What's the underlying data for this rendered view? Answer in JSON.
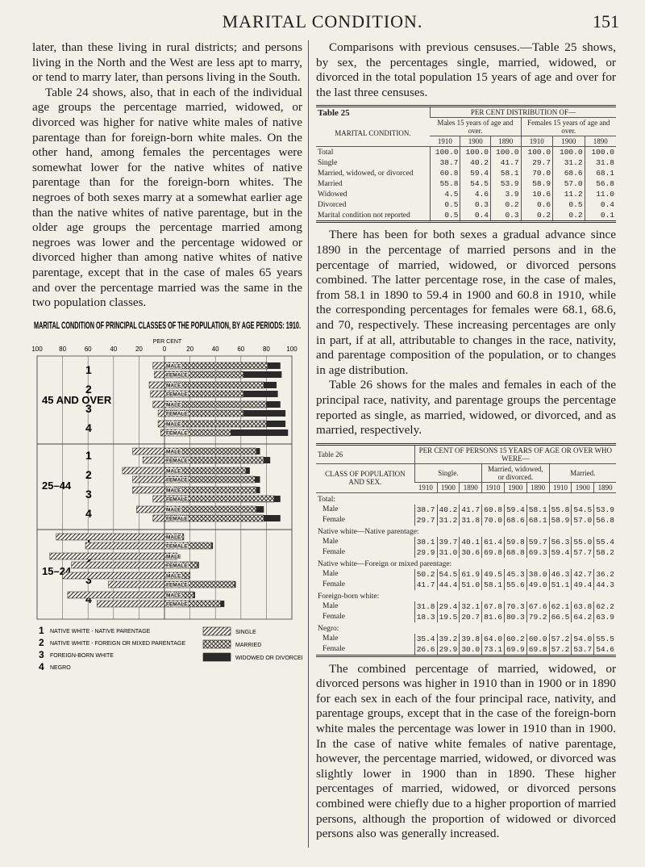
{
  "header": {
    "title": "MARITAL CONDITION.",
    "page": "151"
  },
  "left_text": [
    "later, than these living in rural districts; and persons living in the North and the West are less apt to marry, or tend to marry later, than persons living in the South.",
    "Table 24 shows, also, that in each of the individual age groups the percentage married, widowed, or divorced was higher for native white males of native parentage than for foreign-born white males. On the other hand, among females the percentages were somewhat lower for the native whites of native parentage than for the foreign-born whites. The negroes of both sexes marry at a somewhat earlier age than the native whites of native parentage, but in the older age groups the percentage married among negroes was lower and the percentage widowed or divorced higher than among native whites of native parentage, except that in the case of males 65 years and over the percentage married was the same in the two population classes."
  ],
  "figure": {
    "type": "bar",
    "title": "MARITAL CONDITION OF PRINCIPAL CLASSES OF THE POPULATION, BY AGE PERIODS: 1910.",
    "unit_label": "PER CENT",
    "xlim": [
      -100,
      100
    ],
    "xticks": [
      {
        "value": -100,
        "label": "100"
      },
      {
        "value": -80,
        "label": "80"
      },
      {
        "value": -60,
        "label": "60"
      },
      {
        "value": -40,
        "label": "40"
      },
      {
        "value": -20,
        "label": "20"
      },
      0,
      20,
      40,
      60,
      80,
      100
    ],
    "grid": true,
    "age_groups": [
      "45 AND OVER",
      "25–44",
      "15–24"
    ],
    "class_numbers": [
      "1",
      "2",
      "3",
      "4"
    ],
    "categories": [
      "MALE",
      "FEMALE",
      "MALE",
      "FEMALE",
      "MALE",
      "FEMALE",
      "MALE",
      "FEMALE",
      "MALE",
      "FEMALE",
      "MALE",
      "FEMALE",
      "MALE",
      "FEMALE",
      "MALE",
      "FEMALE",
      "MALE",
      "FEMALE",
      "MALE",
      "FEMALE",
      "MALE",
      "FEMALE",
      "MALE",
      "FEMALE"
    ],
    "series": [
      {
        "name": "SINGLE",
        "values": [
          9,
          8,
          12,
          11,
          9,
          5,
          5,
          3,
          25,
          17,
          33,
          25,
          25,
          9,
          22,
          9,
          85,
          62,
          90,
          73,
          80,
          44,
          76,
          53
        ]
      },
      {
        "name": "MARRIED",
        "values": [
          81,
          62,
          78,
          62,
          80,
          62,
          80,
          52,
          72,
          78,
          64,
          71,
          72,
          86,
          72,
          78,
          15,
          37,
          10,
          26,
          20,
          55,
          23,
          44
        ]
      },
      {
        "name": "WIDOWED OR DIVORCED",
        "values": [
          10,
          30,
          10,
          27,
          11,
          33,
          15,
          45,
          3,
          5,
          3,
          4,
          3,
          5,
          6,
          13,
          0.3,
          1,
          0.2,
          1,
          0.3,
          1,
          1,
          3
        ]
      }
    ],
    "class_legend": [
      "NATIVE WHITE - NATIVE PARENTAGE",
      "NATIVE WHITE - FOREIGN OR MIXED PARENTAGE",
      "FOREIGN-BORN WHITE",
      "NEGRO"
    ]
  },
  "right_text": {
    "intro": "Comparisons with previous censuses.—Table 25 shows, by sex, the percentages single, married, widowed, or divorced in the total population 15 years of age and over for the last three censuses.",
    "middle": [
      "There has been for both sexes a gradual advance since 1890 in the percentage of married persons and in the percentage of married, widowed, or divorced persons combined. The latter percentage rose, in the case of males, from 58.1 in 1890 to 59.4 in 1900 and 60.8 in 1910, while the corresponding percentages for females were 68.1, 68.6, and 70, respectively. These increasing percentages are only in part, if at all, attributable to changes in the race, nativity, and parentage composition of the population, or to changes in age distribution.",
      "Table 26 shows for the males and females in each of the principal race, nativity, and parentage groups the percentage reported as single, as married, widowed, or divorced, and as married, respectively."
    ],
    "closing": "The combined percentage of married, widowed, or divorced persons was higher in 1910 than in 1900 or in 1890 for each sex in each of the four principal race, nativity, and parentage groups, except that in the case of the foreign-born white males the percentage was lower in 1910 than in 1900. In the case of native white females of native parentage, however, the percentage married, widowed, or divorced was slightly lower in 1900 than in 1890. These higher percentages of married, widowed, or divorced persons combined were chiefly due to a higher proportion of married persons, although the proportion of widowed or divorced persons also was generally increased."
  },
  "table_25": {
    "label": "Table 25",
    "stub_header": "MARITAL CONDITION.",
    "spanner": "PER CENT DISTRIBUTION OF—",
    "groups": [
      "Males 15 years of age and over.",
      "Females 15 years of age and over."
    ],
    "years": [
      "1910",
      "1900",
      "1890",
      "1910",
      "1900",
      "1890"
    ],
    "rows": [
      [
        "Total",
        "100.0",
        "100.0",
        "100.0",
        "100.0",
        "100.0",
        "100.0"
      ],
      [
        "Single",
        "38.7",
        "40.2",
        "41.7",
        "29.7",
        "31.2",
        "31.8"
      ],
      [
        "Married, widowed, or divorced",
        "60.8",
        "59.4",
        "58.1",
        "70.0",
        "68.6",
        "68.1"
      ],
      [
        "Married",
        "55.8",
        "54.5",
        "53.9",
        "58.9",
        "57.0",
        "56.8"
      ],
      [
        "Widowed",
        "4.5",
        "4.6",
        "3.9",
        "10.6",
        "11.2",
        "11.0"
      ],
      [
        "Divorced",
        "0.5",
        "0.3",
        "0.2",
        "0.6",
        "0.5",
        "0.4"
      ],
      [
        "Marital condition not reported",
        "0.5",
        "0.4",
        "0.3",
        "0.2",
        "0.2",
        "0.1"
      ]
    ]
  },
  "table_26": {
    "label": "Table 26",
    "spanner": "PER CENT OF PERSONS 15 YEARS OF AGE OR OVER WHO WERE—",
    "stub_header": "CLASS OF POPULATION AND SEX.",
    "groups": [
      "Single.",
      "Married, widowed, or divorced.",
      "Married."
    ],
    "years": [
      "1910",
      "1900",
      "1890",
      "1910",
      "1900",
      "1890",
      "1910",
      "1900",
      "1890"
    ],
    "rows": [
      [
        "Total:"
      ],
      [
        "Male",
        "38.7",
        "40.2",
        "41.7",
        "60.8",
        "59.4",
        "58.1",
        "55.8",
        "54.5",
        "53.9"
      ],
      [
        "Female",
        "29.7",
        "31.2",
        "31.8",
        "70.0",
        "68.6",
        "68.1",
        "58.9",
        "57.0",
        "56.8"
      ],
      [
        "Native white—Native parentage:"
      ],
      [
        "Male",
        "38.1",
        "39.7",
        "40.1",
        "61.4",
        "59.8",
        "59.7",
        "56.3",
        "55.0",
        "55.4"
      ],
      [
        "Female",
        "29.9",
        "31.0",
        "30.6",
        "69.8",
        "68.8",
        "69.3",
        "59.4",
        "57.7",
        "58.2"
      ],
      [
        "Native white—Foreign or mixed parentage:"
      ],
      [
        "Male",
        "50.2",
        "54.5",
        "61.9",
        "49.5",
        "45.3",
        "38.0",
        "46.3",
        "42.7",
        "36.2"
      ],
      [
        "Female",
        "41.7",
        "44.4",
        "51.0",
        "58.1",
        "55.6",
        "49.0",
        "51.1",
        "49.4",
        "44.3"
      ],
      [
        "Foreign-born white:"
      ],
      [
        "Male",
        "31.8",
        "29.4",
        "32.1",
        "67.8",
        "70.3",
        "67.6",
        "62.1",
        "63.8",
        "62.2"
      ],
      [
        "Female",
        "18.3",
        "19.5",
        "20.7",
        "81.6",
        "80.3",
        "79.2",
        "66.5",
        "64.2",
        "63.9"
      ],
      [
        "Negro:"
      ],
      [
        "Male",
        "35.4",
        "39.2",
        "39.8",
        "64.0",
        "60.2",
        "60.0",
        "57.2",
        "54.0",
        "55.5"
      ],
      [
        "Female",
        "26.6",
        "29.9",
        "30.0",
        "73.1",
        "69.9",
        "69.8",
        "57.2",
        "53.7",
        "54.6"
      ]
    ]
  }
}
